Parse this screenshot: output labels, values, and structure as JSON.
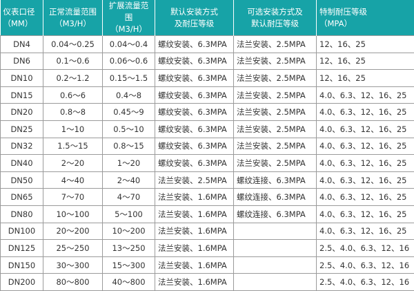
{
  "headers": [
    {
      "line1": "仪表口径",
      "line2": "（MM）"
    },
    {
      "line1": "正常流量范围",
      "line2": "（M3/H）"
    },
    {
      "line1": "扩展流量范围",
      "line2": "（M3/H）"
    },
    {
      "line1": "默认安装方式",
      "line2": "及耐压等级"
    },
    {
      "line1": "可选安装方式及",
      "line2": "默认耐压等级"
    },
    {
      "line1": "特制耐压等级",
      "line2": "（MPA）"
    }
  ],
  "header_color": "#17a3a7",
  "rows": [
    [
      "DN4",
      "0.04～0.25",
      "0.04～0.4",
      "螺纹安装、6.3MPA",
      "法兰安装、2.5MPA",
      "12、16、25"
    ],
    [
      "DN6",
      "0.1～0.6",
      "0.06～0.6",
      "螺纹安装、6.3MPA",
      "法兰安装、2.5MPA",
      "12、16、25"
    ],
    [
      "DN10",
      "0.2～1.2",
      "0.15～1.5",
      "螺纹安装、6.3MPA",
      "法兰安装、2.5MPA",
      "12、16、25"
    ],
    [
      "DN15",
      "0.6～6",
      "0.4～8",
      "螺纹安装、6.3MPA",
      "法兰安装、2.5MPA",
      "4.0、6.3、12、16、25"
    ],
    [
      "DN20",
      "0.8～8",
      "0.45～9",
      "螺纹安装、6.3MPA",
      "法兰安装、2.5MPA",
      "4.0、6.3、12、16、25"
    ],
    [
      "DN25",
      "1～10",
      "0.5～10",
      "螺纹安装、6.3MPA",
      "法兰安装、2.5MPA",
      "4.0、6.3、12、16、25"
    ],
    [
      "DN32",
      "1.5～15",
      "0.8～15",
      "螺纹安装、6.3MPA",
      "法兰安装、2.5MPA",
      "4.0、6.3、12、16、25"
    ],
    [
      "DN40",
      "2～20",
      "1～20",
      "螺纹安装、6.3MPA",
      "法兰安装、2.5MPA",
      "4.0、6.3、12、16、25"
    ],
    [
      "DN50",
      "4～40",
      "2～40",
      "法兰安装、2.5MPA",
      "螺纹连接、6.3MPA",
      "4.0、6.3、12、16、25"
    ],
    [
      "DN65",
      "7～70",
      "4～70",
      "法兰安装、1.6MPA",
      "螺纹连接、6.3MPA",
      "4.0、6.3、12、16、25"
    ],
    [
      "DN80",
      "10～100",
      "5～100",
      "法兰安装、1.6MPA",
      "螺纹连接、6.3MPA",
      "4.0、6.3、12、16、25"
    ],
    [
      "DN100",
      "20～200",
      "10～200",
      "法兰安装、1.6MPA",
      "",
      "4.0、6.3、12、16、25"
    ],
    [
      "DN125",
      "25～250",
      "13～250",
      "法兰安装、1.6MPA",
      "",
      "2.5、4.0、6.3、12、16"
    ],
    [
      "DN150",
      "30～300",
      "15～300",
      "法兰安装、1.6MPA",
      "",
      "2.5、4.0、6.3、12、16"
    ],
    [
      "DN200",
      "80～800",
      "40～800",
      "法兰安装、1.6MPA",
      "",
      "2.5、4.0、6.3、12、16"
    ]
  ]
}
